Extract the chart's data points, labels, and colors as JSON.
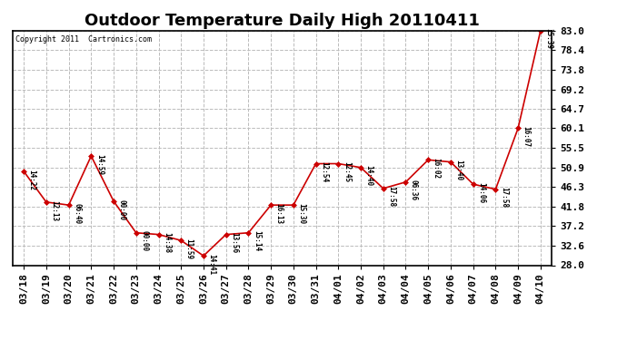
{
  "title": "Outdoor Temperature Daily High 20110411",
  "copyright": "Copyright 2011  Cartronics.com",
  "x_labels": [
    "03/18",
    "03/19",
    "03/20",
    "03/21",
    "03/22",
    "03/23",
    "03/24",
    "03/25",
    "03/26",
    "03/27",
    "03/28",
    "03/29",
    "03/30",
    "03/31",
    "04/01",
    "04/02",
    "04/03",
    "04/04",
    "04/05",
    "04/06",
    "04/07",
    "04/08",
    "04/09",
    "04/10"
  ],
  "y_values": [
    50.0,
    42.8,
    42.1,
    53.6,
    43.0,
    35.6,
    35.2,
    33.8,
    30.2,
    35.2,
    35.6,
    42.1,
    42.1,
    51.8,
    51.8,
    50.9,
    46.0,
    47.5,
    52.7,
    52.2,
    47.0,
    45.8,
    60.1,
    83.0
  ],
  "point_labels": [
    "14:22",
    "12:13",
    "06:40",
    "14:59",
    "00:00",
    "00:00",
    "14:38",
    "11:59",
    "14:41",
    "13:56",
    "15:14",
    "16:13",
    "15:30",
    "12:54",
    "12:45",
    "14:40",
    "17:58",
    "06:36",
    "16:02",
    "13:40",
    "14:06",
    "17:58",
    "16:07",
    "15:39"
  ],
  "ylim_min": 28.0,
  "ylim_max": 83.0,
  "yticks": [
    28.0,
    32.6,
    37.2,
    41.8,
    46.3,
    50.9,
    55.5,
    60.1,
    64.7,
    69.2,
    73.8,
    78.4,
    83.0
  ],
  "line_color": "#cc0000",
  "marker_color": "#cc0000",
  "bg_color": "#ffffff",
  "grid_color": "#bbbbbb",
  "title_fontsize": 13,
  "tick_fontsize": 8,
  "label_fontsize": 6
}
